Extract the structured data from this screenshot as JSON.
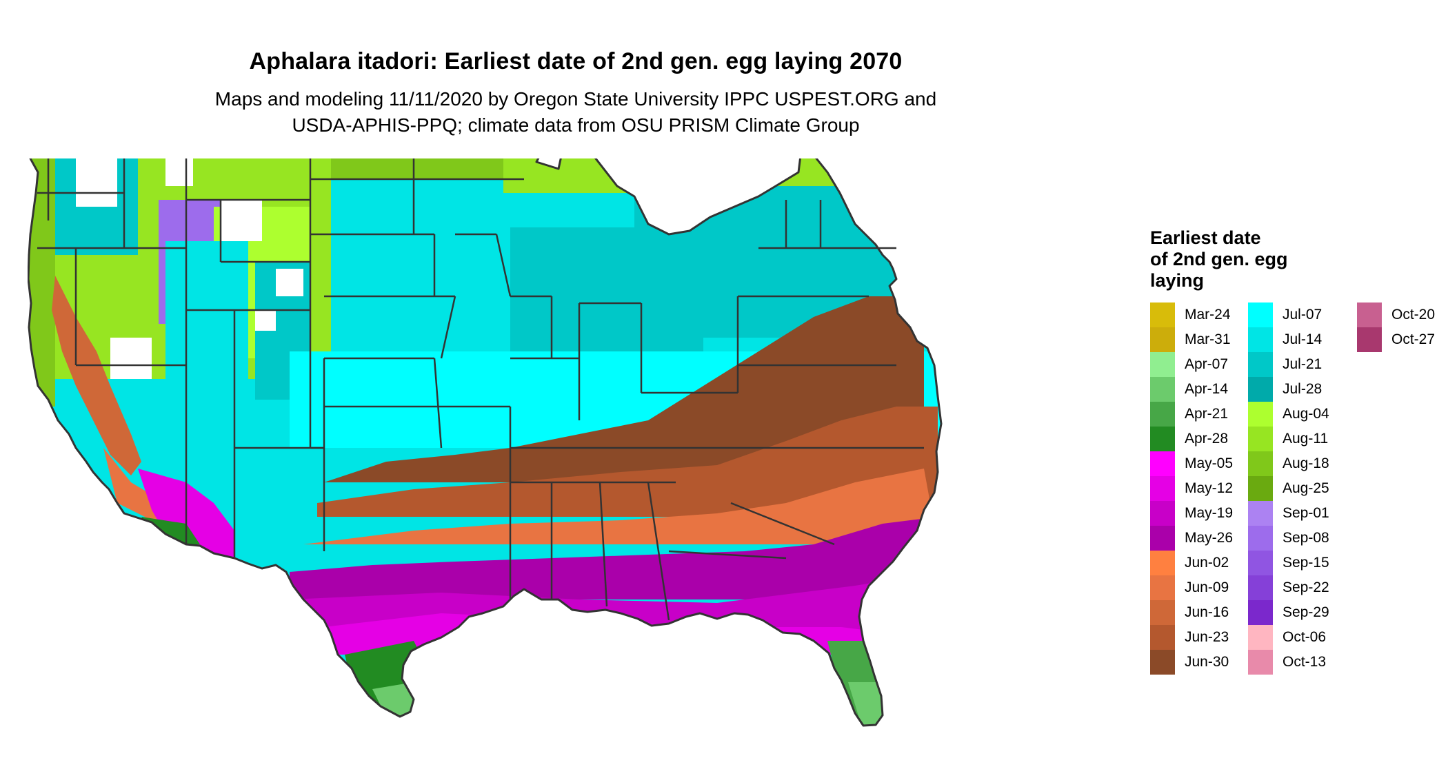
{
  "title": "Aphalara itadori: Earliest date of 2nd gen. egg laying 2070",
  "subtitle": [
    "Maps and modeling 11/11/2020 by Oregon State University IPPC USPEST.ORG and",
    "USDA-APHIS-PPQ; climate data from OSU PRISM Climate Group"
  ],
  "legend": {
    "title": [
      "Earliest date",
      "of 2nd gen. egg",
      "laying"
    ],
    "columns": [
      [
        {
          "label": "Mar-24",
          "color": "#D8BC0A"
        },
        {
          "label": "Mar-31",
          "color": "#CCAD0B"
        },
        {
          "label": "Apr-07",
          "color": "#90EE90"
        },
        {
          "label": "Apr-14",
          "color": "#6CCB6C"
        },
        {
          "label": "Apr-21",
          "color": "#47A747"
        },
        {
          "label": "Apr-28",
          "color": "#228B22"
        },
        {
          "label": "May-05",
          "color": "#FF00FF"
        },
        {
          "label": "May-12",
          "color": "#E500E5"
        },
        {
          "label": "May-19",
          "color": "#C800C8"
        },
        {
          "label": "May-26",
          "color": "#AA00AA"
        },
        {
          "label": "Jun-02",
          "color": "#FF8040"
        },
        {
          "label": "Jun-09",
          "color": "#E87442"
        },
        {
          "label": "Jun-16",
          "color": "#CF6838"
        },
        {
          "label": "Jun-23",
          "color": "#B4582E"
        },
        {
          "label": "Jun-30",
          "color": "#8B4A28"
        }
      ],
      [
        {
          "label": "Jul-07",
          "color": "#00FFFF"
        },
        {
          "label": "Jul-14",
          "color": "#00E5E5"
        },
        {
          "label": "Jul-21",
          "color": "#00C8C8"
        },
        {
          "label": "Jul-28",
          "color": "#00AAAA"
        },
        {
          "label": "Aug-04",
          "color": "#ADFF2F"
        },
        {
          "label": "Aug-11",
          "color": "#97E522"
        },
        {
          "label": "Aug-18",
          "color": "#80C81A"
        },
        {
          "label": "Aug-25",
          "color": "#6AAA10"
        },
        {
          "label": "Sep-01",
          "color": "#AC82F2"
        },
        {
          "label": "Sep-08",
          "color": "#9D6CEC"
        },
        {
          "label": "Sep-15",
          "color": "#9055E2"
        },
        {
          "label": "Sep-22",
          "color": "#8540D8"
        },
        {
          "label": "Sep-29",
          "color": "#7B28CC"
        },
        {
          "label": "Oct-06",
          "color": "#FFB6C1"
        },
        {
          "label": "Oct-13",
          "color": "#E88AAA"
        }
      ],
      [
        {
          "label": "Oct-20",
          "color": "#C86090"
        },
        {
          "label": "Oct-27",
          "color": "#A8386E"
        }
      ]
    ]
  },
  "map": {
    "boundary_color": "#333333",
    "no_data_color": "#ffffff"
  }
}
